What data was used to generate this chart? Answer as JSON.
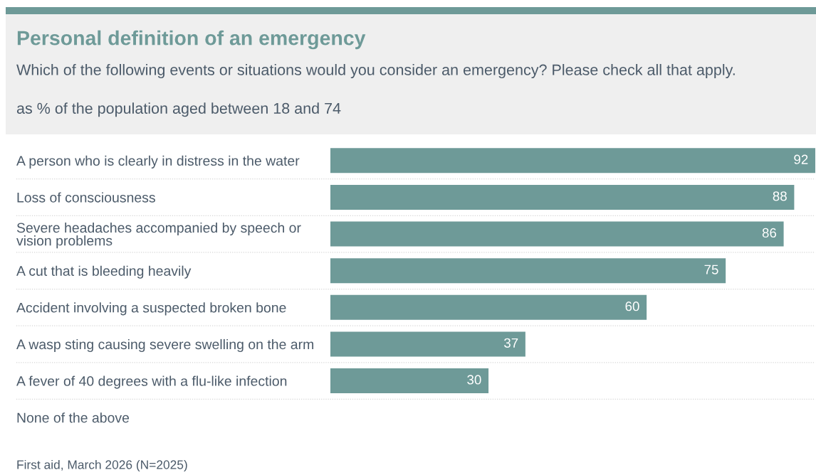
{
  "chart_data": {
    "type": "bar",
    "orientation": "horizontal",
    "title": "Personal definition of an emergency",
    "subtitle": "Which of the following events or situations would you consider an emergency? Please check all that apply.\n\nas % of the population aged between 18 and 74",
    "categories": [
      "A person who is clearly in distress in the water",
      "Loss of consciousness",
      "Severe headaches accompanied by speech or vision problems",
      "A cut that is bleeding heavily",
      "Accident involving a suspected broken bone",
      "A wasp sting causing severe swelling on the arm",
      "A fever of 40 degrees with a flu-like infection",
      "None of the above"
    ],
    "values": [
      92,
      88,
      86,
      75,
      60,
      37,
      30,
      null
    ],
    "color": "#6e9a98",
    "xlim": [
      0,
      92
    ],
    "data_labels": true,
    "tick_labels": "y",
    "grid": "y",
    "annotations": [
      "First aid, March 2026 (N=2025)"
    ]
  }
}
